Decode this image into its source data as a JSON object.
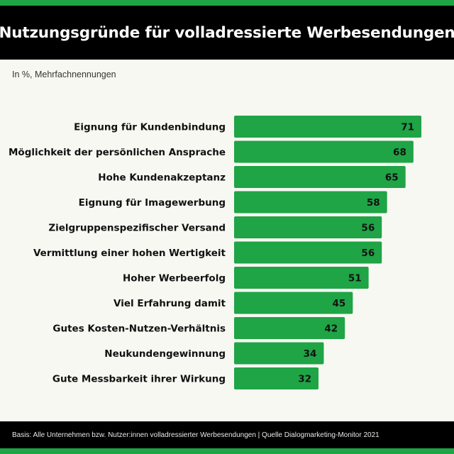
{
  "header": {
    "title": "Nutzungsgründe für volladressierte Werbesendungen"
  },
  "subtitle": "In %, Mehrfachnennungen",
  "footer": {
    "text": "Basis: Alle Unternehmen bzw. Nutzer:innen volladressierter Werbesendungen | Quelle Dialogmarketing-Monitor 2021"
  },
  "colors": {
    "accent": "#1fa446",
    "header_bg": "#000000",
    "background": "#f8f8f2"
  },
  "chart_data": {
    "type": "bar",
    "orientation": "horizontal",
    "categories": [
      "Eignung für Kundenbindung",
      "Möglichkeit der persönlichen Ansprache",
      "Hohe Kundenakzeptanz",
      "Eignung für Imagewerbung",
      "Zielgruppenspezifischer Versand",
      "Vermittlung einer hohen Wertigkeit",
      "Hoher Werbeerfolg",
      "Viel Erfahrung damit",
      "Gutes Kosten-Nutzen-Verhältnis",
      "Neukundengewinnung",
      "Gute Messbarkeit ihrer Wirkung"
    ],
    "values": [
      71,
      68,
      65,
      58,
      56,
      56,
      51,
      45,
      42,
      34,
      32
    ],
    "data_labels": [
      "71",
      "68",
      "65",
      "58",
      "56",
      "56",
      "51",
      "45",
      "42",
      "34",
      "32"
    ],
    "xlim": [
      0,
      71
    ],
    "grid": false,
    "legend": "none",
    "bar_color": "#1fa446"
  }
}
